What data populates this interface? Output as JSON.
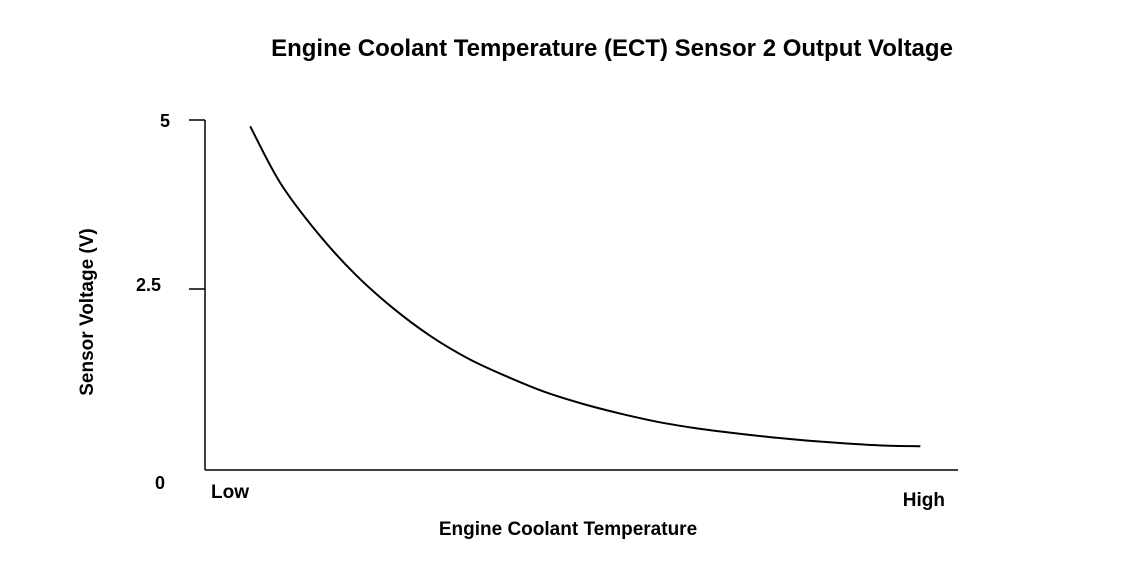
{
  "chart_data": {
    "type": "line",
    "title": "Engine Coolant Temperature (ECT) Sensor 2 Output Voltage",
    "xlabel": "Engine Coolant Temperature",
    "ylabel": "Sensor Voltage (V)",
    "x_ticks": [
      "Low",
      "High"
    ],
    "y_ticks": [
      "0",
      "2.5",
      "5"
    ],
    "ylim": [
      0,
      5
    ],
    "xlim": [
      0,
      1
    ],
    "grid": false,
    "legend": "none",
    "line_color": "#000000",
    "series": [
      {
        "x": [
          0.06,
          0.1,
          0.15,
          0.2,
          0.25,
          0.3,
          0.35,
          0.4,
          0.45,
          0.5,
          0.55,
          0.6,
          0.65,
          0.7,
          0.75,
          0.8,
          0.85,
          0.9,
          0.95
        ],
        "values": [
          4.91,
          4.1,
          3.38,
          2.79,
          2.31,
          1.91,
          1.59,
          1.34,
          1.12,
          0.95,
          0.81,
          0.69,
          0.6,
          0.53,
          0.47,
          0.42,
          0.38,
          0.35,
          0.34
        ]
      }
    ]
  }
}
